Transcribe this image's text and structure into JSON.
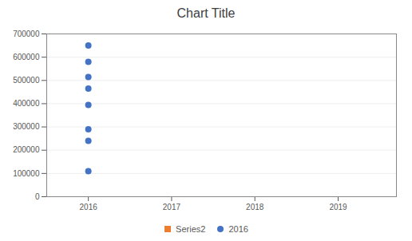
{
  "chart_data": {
    "type": "scatter",
    "title": "Chart Title",
    "x": [
      2016,
      2016,
      2016,
      2016,
      2016,
      2016,
      2016,
      2016
    ],
    "series": [
      {
        "name": "Series2",
        "color": "#ED7D31",
        "marker": "square",
        "values": [
          null,
          null,
          null,
          null,
          null,
          null,
          null,
          null
        ]
      },
      {
        "name": "2016",
        "color": "#4472C4",
        "marker": "circle",
        "values": [
          650000,
          580000,
          515000,
          465000,
          395000,
          290000,
          240000,
          110000
        ]
      }
    ],
    "xlim": [
      2015.5,
      2019.7
    ],
    "xticks": [
      2016,
      2017,
      2018,
      2019
    ],
    "ylim": [
      0,
      700000
    ],
    "yticks": [
      0,
      100000,
      200000,
      300000,
      400000,
      500000,
      600000,
      700000
    ],
    "grid": true,
    "legend": "bottom"
  }
}
